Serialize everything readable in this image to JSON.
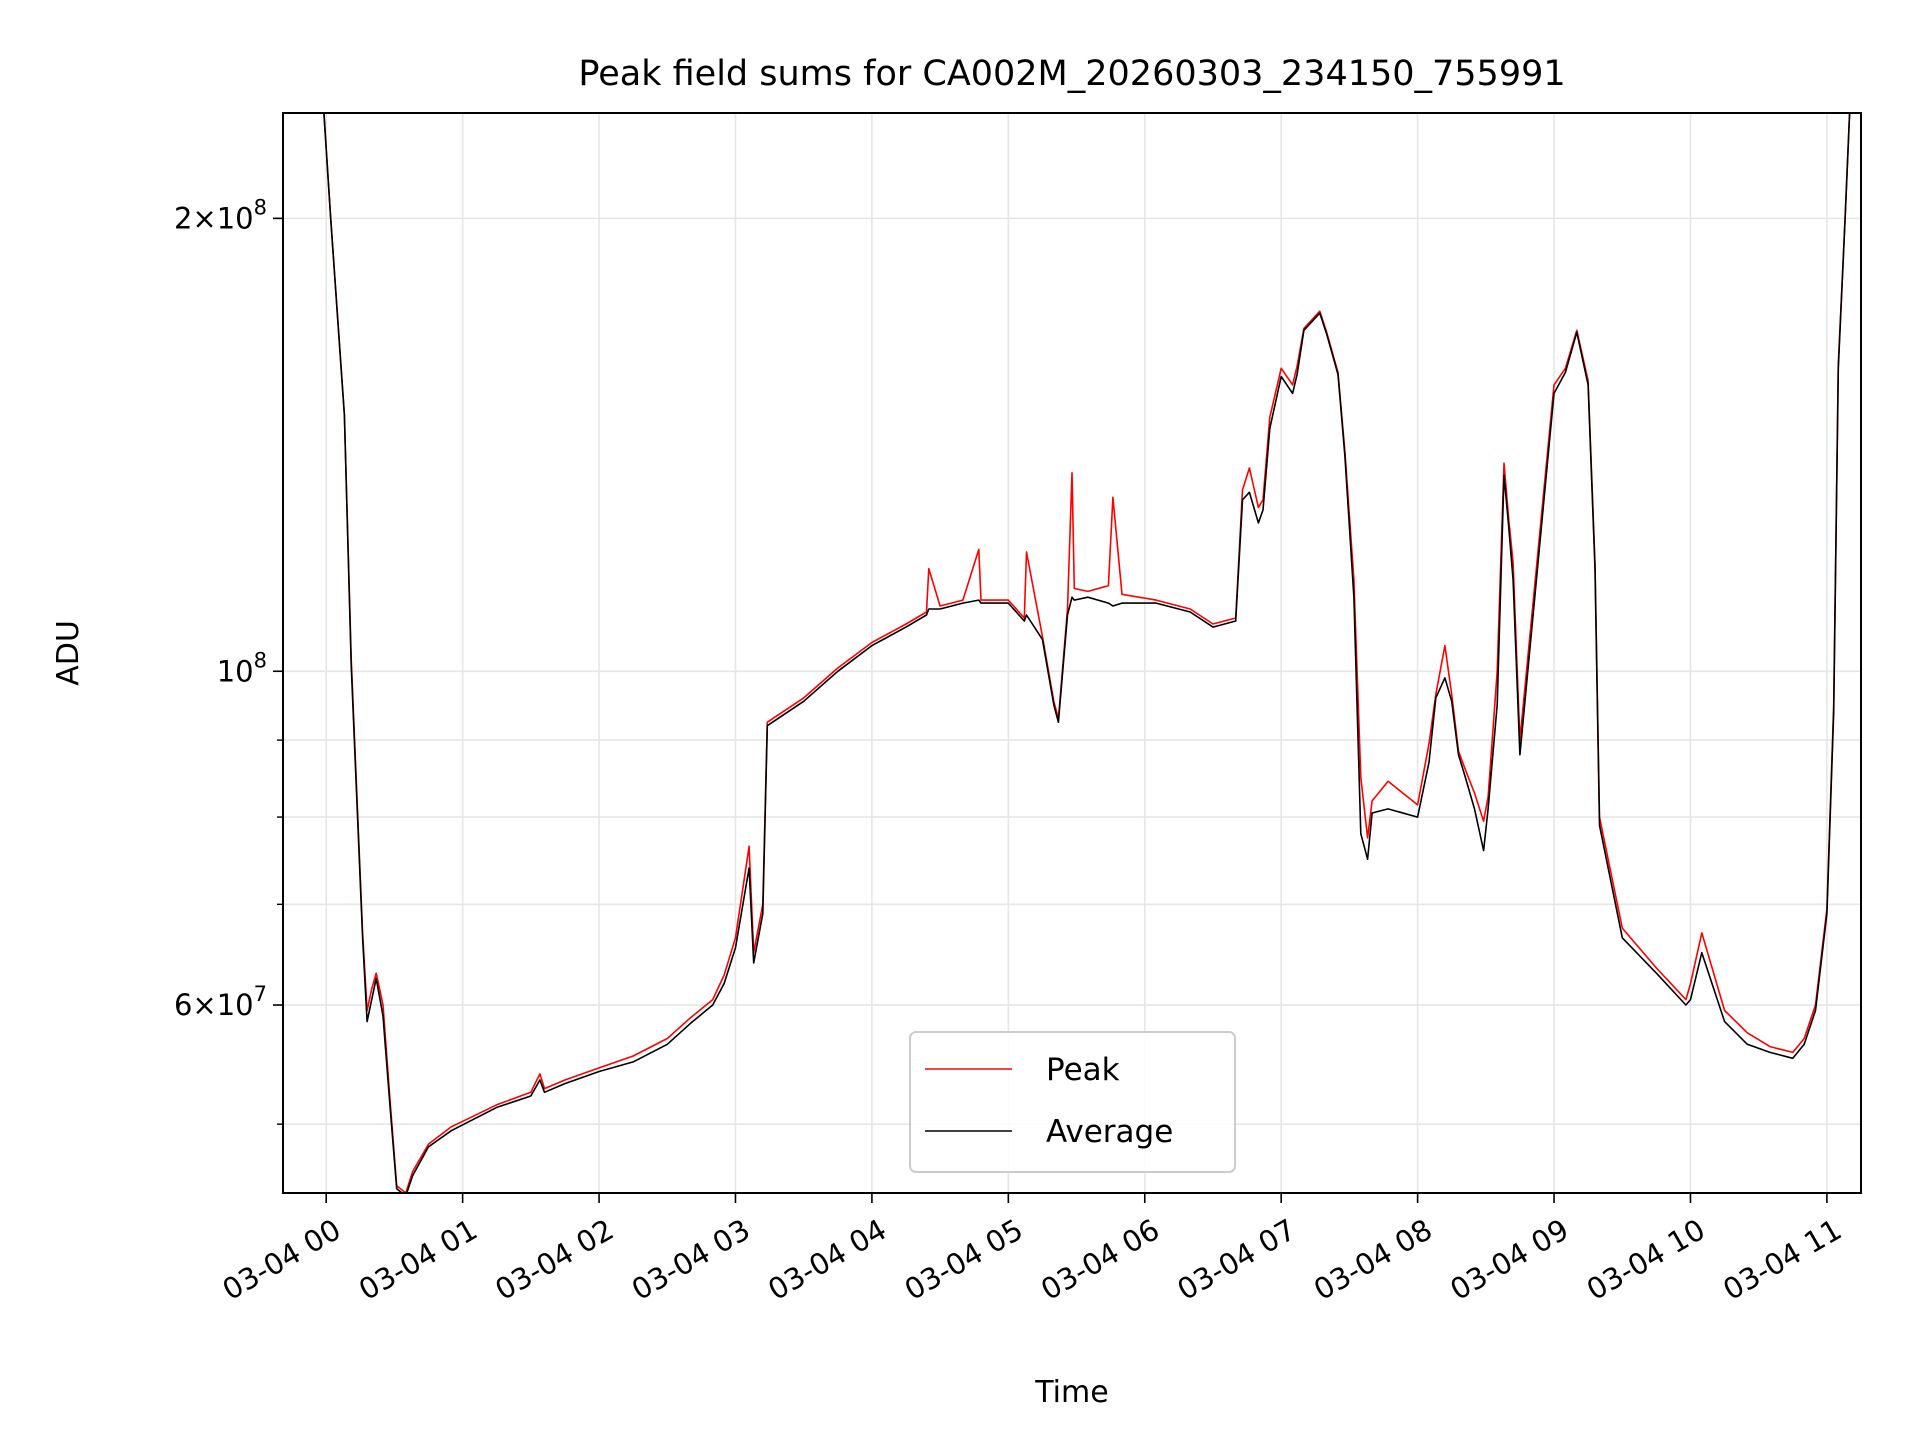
{
  "chart_data": {
    "type": "line",
    "title": "Peak field sums for CA002M_20260303_234150_755991",
    "xlabel": "Time",
    "ylabel": "ADU",
    "y_scale": "log",
    "ylim": [
      45000000,
      235000000
    ],
    "xlim": [
      "2026-03-03 23:41",
      "2026-03-04 11:15"
    ],
    "x_tick_labels": [
      "03-04 00",
      "03-04 01",
      "03-04 02",
      "03-04 03",
      "03-04 04",
      "03-04 05",
      "03-04 06",
      "03-04 07",
      "03-04 08",
      "03-04 09",
      "03-04 10",
      "03-04 11"
    ],
    "y_tick_labels": [
      {
        "value": 200000000,
        "mantissa": "2",
        "exponent": "8",
        "major": true
      },
      {
        "value": 100000000,
        "mantissa": "",
        "exponent": "8",
        "major": true
      },
      {
        "value": 60000000,
        "mantissa": "6",
        "exponent": "7",
        "major": true
      }
    ],
    "y_minor_ticks": [
      50000000,
      70000000,
      80000000,
      90000000
    ],
    "grid": true,
    "legend_position": "bottom-center",
    "series": [
      {
        "name": "Peak",
        "color": "#ff0000",
        "x": [
          "2026-03-03 23:41",
          "2026-03-03 23:59",
          "2026-03-04 00:02",
          "2026-03-04 00:08",
          "2026-03-04 00:11",
          "2026-03-04 00:16",
          "2026-03-04 00:18",
          "2026-03-04 00:20",
          "2026-03-04 00:22",
          "2026-03-04 00:25",
          "2026-03-04 00:28",
          "2026-03-04 00:31",
          "2026-03-04 00:35",
          "2026-03-04 00:38",
          "2026-03-04 00:45",
          "2026-03-04 00:55",
          "2026-03-04 01:15",
          "2026-03-04 01:30",
          "2026-03-04 01:34",
          "2026-03-04 01:36",
          "2026-03-04 01:45",
          "2026-03-04 02:00",
          "2026-03-04 02:15",
          "2026-03-04 02:30",
          "2026-03-04 02:40",
          "2026-03-04 02:50",
          "2026-03-04 02:55",
          "2026-03-04 03:00",
          "2026-03-04 03:06",
          "2026-03-04 03:08",
          "2026-03-04 03:12",
          "2026-03-04 03:14",
          "2026-03-04 03:30",
          "2026-03-04 03:45",
          "2026-03-04 04:00",
          "2026-03-04 04:15",
          "2026-03-04 04:24",
          "2026-03-04 04:25",
          "2026-03-04 04:30",
          "2026-03-04 04:40",
          "2026-03-04 04:47",
          "2026-03-04 04:48",
          "2026-03-04 05:00",
          "2026-03-04 05:07",
          "2026-03-04 05:08",
          "2026-03-04 05:15",
          "2026-03-04 05:20",
          "2026-03-04 05:22",
          "2026-03-04 05:26",
          "2026-03-04 05:28",
          "2026-03-04 05:29",
          "2026-03-04 05:35",
          "2026-03-04 05:44",
          "2026-03-04 05:46",
          "2026-03-04 05:50",
          "2026-03-04 06:05",
          "2026-03-04 06:20",
          "2026-03-04 06:30",
          "2026-03-04 06:40",
          "2026-03-04 06:43",
          "2026-03-04 06:46",
          "2026-03-04 06:50",
          "2026-03-04 06:52",
          "2026-03-04 06:55",
          "2026-03-04 07:00",
          "2026-03-04 07:05",
          "2026-03-04 07:07",
          "2026-03-04 07:10",
          "2026-03-04 07:17",
          "2026-03-04 07:20",
          "2026-03-04 07:25",
          "2026-03-04 07:28",
          "2026-03-04 07:32",
          "2026-03-04 07:35",
          "2026-03-04 07:38",
          "2026-03-04 07:40",
          "2026-03-04 07:47",
          "2026-03-04 08:00",
          "2026-03-04 08:05",
          "2026-03-04 08:08",
          "2026-03-04 08:12",
          "2026-03-04 08:15",
          "2026-03-04 08:18",
          "2026-03-04 08:21",
          "2026-03-04 08:25",
          "2026-03-04 08:29",
          "2026-03-04 08:31",
          "2026-03-04 08:35",
          "2026-03-04 08:38",
          "2026-03-04 08:40",
          "2026-03-04 08:42",
          "2026-03-04 08:45",
          "2026-03-04 09:00",
          "2026-03-04 09:05",
          "2026-03-04 09:10",
          "2026-03-04 09:15",
          "2026-03-04 09:18",
          "2026-03-04 09:20",
          "2026-03-04 09:30",
          "2026-03-04 09:45",
          "2026-03-04 09:58",
          "2026-03-04 10:00",
          "2026-03-04 10:05",
          "2026-03-04 10:15",
          "2026-03-04 10:25",
          "2026-03-04 10:35",
          "2026-03-04 10:45",
          "2026-03-04 10:50",
          "2026-03-04 10:55",
          "2026-03-04 11:00",
          "2026-03-04 11:03",
          "2026-03-04 11:05",
          "2026-03-04 11:08",
          "2026-03-04 11:10",
          "2026-03-04 11:15"
        ],
        "y": [
          235000000,
          235000000,
          200000000,
          148000000,
          102000000,
          67000000,
          59500000,
          61500000,
          63000000,
          60000000,
          52000000,
          45500000,
          45000000,
          46500000,
          48500000,
          49800000,
          51500000,
          52500000,
          54000000,
          52800000,
          53500000,
          54500000,
          55500000,
          57000000,
          58800000,
          60500000,
          62800000,
          66500000,
          76500000,
          65000000,
          70000000,
          92500000,
          96000000,
          100500000,
          104500000,
          107500000,
          109500000,
          117000000,
          110500000,
          111500000,
          120500000,
          111500000,
          111500000,
          108500000,
          120000000,
          105500000,
          95500000,
          93000000,
          110000000,
          135500000,
          113500000,
          113000000,
          114000000,
          130500000,
          112500000,
          111500000,
          110000000,
          107500000,
          108500000,
          132000000,
          136500000,
          128500000,
          130000000,
          147500000,
          159000000,
          155000000,
          159500000,
          169000000,
          173500000,
          168000000,
          158000000,
          140000000,
          115000000,
          85000000,
          77500000,
          82000000,
          84500000,
          81500000,
          89500000,
          96500000,
          104000000,
          96500000,
          88500000,
          86000000,
          83000000,
          79500000,
          82500000,
          100000000,
          137500000,
          126500000,
          118000000,
          90000000,
          155000000,
          159000000,
          168500000,
          156000000,
          118000000,
          80000000,
          67500000,
          63500000,
          60500000,
          62000000,
          67000000,
          59500000,
          57500000,
          56300000,
          55800000,
          57000000,
          60000000,
          69500000,
          95000000,
          160000000,
          200000000,
          235000000,
          235000000
        ]
      },
      {
        "name": "Average",
        "color": "#000000",
        "x": [
          "2026-03-03 23:41",
          "2026-03-03 23:59",
          "2026-03-04 00:02",
          "2026-03-04 00:08",
          "2026-03-04 00:11",
          "2026-03-04 00:16",
          "2026-03-04 00:18",
          "2026-03-04 00:20",
          "2026-03-04 00:22",
          "2026-03-04 00:25",
          "2026-03-04 00:28",
          "2026-03-04 00:31",
          "2026-03-04 00:35",
          "2026-03-04 00:38",
          "2026-03-04 00:45",
          "2026-03-04 00:55",
          "2026-03-04 01:15",
          "2026-03-04 01:30",
          "2026-03-04 01:34",
          "2026-03-04 01:36",
          "2026-03-04 01:45",
          "2026-03-04 02:00",
          "2026-03-04 02:15",
          "2026-03-04 02:30",
          "2026-03-04 02:40",
          "2026-03-04 02:50",
          "2026-03-04 02:55",
          "2026-03-04 03:00",
          "2026-03-04 03:06",
          "2026-03-04 03:08",
          "2026-03-04 03:12",
          "2026-03-04 03:14",
          "2026-03-04 03:30",
          "2026-03-04 03:45",
          "2026-03-04 04:00",
          "2026-03-04 04:15",
          "2026-03-04 04:24",
          "2026-03-04 04:25",
          "2026-03-04 04:30",
          "2026-03-04 04:40",
          "2026-03-04 04:47",
          "2026-03-04 04:48",
          "2026-03-04 05:00",
          "2026-03-04 05:07",
          "2026-03-04 05:08",
          "2026-03-04 05:15",
          "2026-03-04 05:20",
          "2026-03-04 05:22",
          "2026-03-04 05:26",
          "2026-03-04 05:28",
          "2026-03-04 05:29",
          "2026-03-04 05:35",
          "2026-03-04 05:44",
          "2026-03-04 05:46",
          "2026-03-04 05:50",
          "2026-03-04 06:05",
          "2026-03-04 06:20",
          "2026-03-04 06:30",
          "2026-03-04 06:40",
          "2026-03-04 06:43",
          "2026-03-04 06:46",
          "2026-03-04 06:50",
          "2026-03-04 06:52",
          "2026-03-04 06:55",
          "2026-03-04 07:00",
          "2026-03-04 07:05",
          "2026-03-04 07:07",
          "2026-03-04 07:10",
          "2026-03-04 07:17",
          "2026-03-04 07:20",
          "2026-03-04 07:25",
          "2026-03-04 07:28",
          "2026-03-04 07:32",
          "2026-03-04 07:35",
          "2026-03-04 07:38",
          "2026-03-04 07:40",
          "2026-03-04 07:47",
          "2026-03-04 08:00",
          "2026-03-04 08:05",
          "2026-03-04 08:08",
          "2026-03-04 08:12",
          "2026-03-04 08:15",
          "2026-03-04 08:18",
          "2026-03-04 08:21",
          "2026-03-04 08:25",
          "2026-03-04 08:29",
          "2026-03-04 08:31",
          "2026-03-04 08:35",
          "2026-03-04 08:38",
          "2026-03-04 08:40",
          "2026-03-04 08:42",
          "2026-03-04 08:45",
          "2026-03-04 09:00",
          "2026-03-04 09:05",
          "2026-03-04 09:10",
          "2026-03-04 09:15",
          "2026-03-04 09:18",
          "2026-03-04 09:20",
          "2026-03-04 09:30",
          "2026-03-04 09:45",
          "2026-03-04 09:58",
          "2026-03-04 10:00",
          "2026-03-04 10:05",
          "2026-03-04 10:15",
          "2026-03-04 10:25",
          "2026-03-04 10:35",
          "2026-03-04 10:45",
          "2026-03-04 10:50",
          "2026-03-04 10:55",
          "2026-03-04 11:00",
          "2026-03-04 11:03",
          "2026-03-04 11:05",
          "2026-03-04 11:08",
          "2026-03-04 11:10",
          "2026-03-04 11:15"
        ],
        "y": [
          235000000,
          235000000,
          200000000,
          148000000,
          101000000,
          66500000,
          58500000,
          60500000,
          62500000,
          59000000,
          51500000,
          45300000,
          44800000,
          46200000,
          48300000,
          49500000,
          51300000,
          52200000,
          53500000,
          52500000,
          53200000,
          54200000,
          55000000,
          56500000,
          58300000,
          60000000,
          62000000,
          65500000,
          74000000,
          64000000,
          69000000,
          92000000,
          95500000,
          100000000,
          104000000,
          107000000,
          109000000,
          110000000,
          110000000,
          111000000,
          111500000,
          111000000,
          111000000,
          108000000,
          109000000,
          105000000,
          95000000,
          92500000,
          109000000,
          112000000,
          111500000,
          112000000,
          111000000,
          110500000,
          111000000,
          111000000,
          109500000,
          107000000,
          108000000,
          130000000,
          131500000,
          125500000,
          128000000,
          145000000,
          157000000,
          153000000,
          157500000,
          168500000,
          173000000,
          167500000,
          157500000,
          139000000,
          112000000,
          78000000,
          75000000,
          80500000,
          81000000,
          80000000,
          87000000,
          96000000,
          99000000,
          95500000,
          88000000,
          85000000,
          81000000,
          76000000,
          81000000,
          95000000,
          135000000,
          125000000,
          115000000,
          88000000,
          153000000,
          158000000,
          168000000,
          155000000,
          117000000,
          79000000,
          66500000,
          63000000,
          60000000,
          60500000,
          65000000,
          58500000,
          56500000,
          55800000,
          55300000,
          56500000,
          59500000,
          69000000,
          94000000,
          159000000,
          200000000,
          235000000,
          235000000
        ]
      }
    ]
  }
}
